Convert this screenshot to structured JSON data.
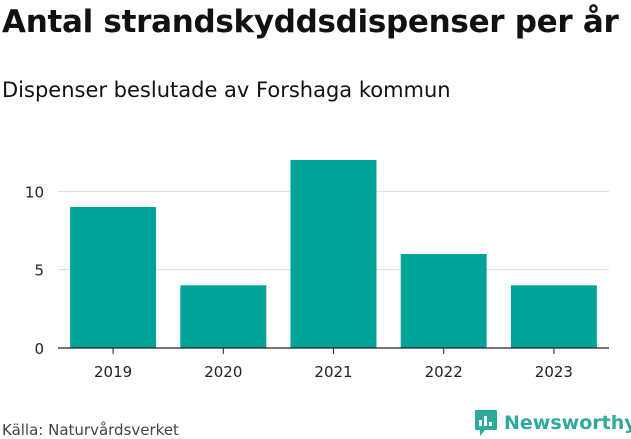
{
  "chart_data": {
    "type": "bar",
    "title": "Antal strandskyddsdispenser per år",
    "subtitle": "Dispenser beslutade av Forshaga kommun",
    "categories": [
      "2019",
      "2020",
      "2021",
      "2022",
      "2023"
    ],
    "values": [
      9,
      4,
      12,
      6,
      4
    ],
    "xlabel": "",
    "ylabel": "",
    "ylim": [
      0,
      12
    ],
    "yticks": [
      0,
      5,
      10
    ],
    "grid": true,
    "bar_color": "#00a397",
    "source": "Källa: Naturvårdsverket"
  },
  "branding": {
    "name": "Newsworthy",
    "color": "#2eaa9c",
    "icon": "newsworthy-logo-icon"
  }
}
